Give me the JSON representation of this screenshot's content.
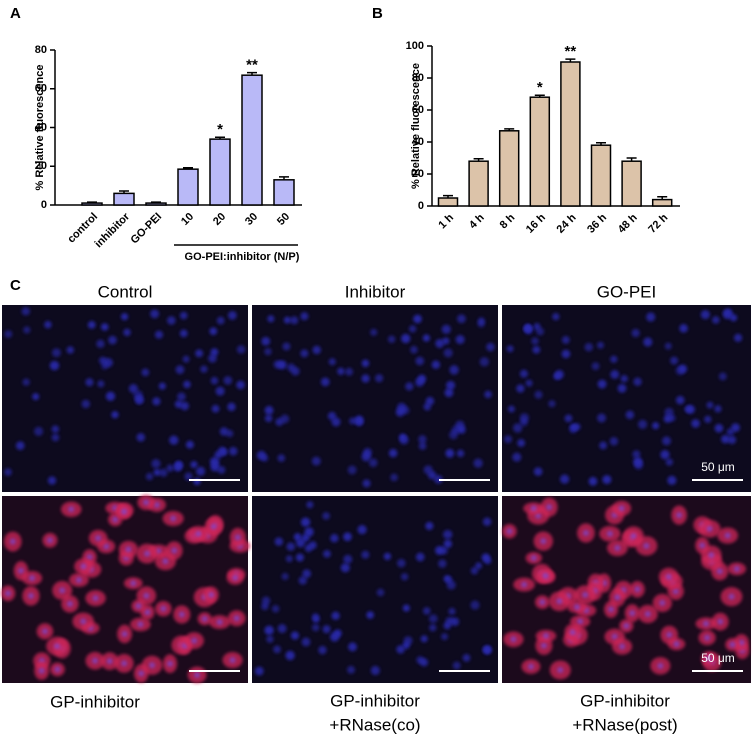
{
  "chart_data": [
    {
      "type": "bar",
      "panel_label": "A",
      "ylabel": "% Relative fluorescence",
      "categories": [
        "control",
        "inhibitor",
        "GO-PEI",
        "10",
        "20",
        "30",
        "50"
      ],
      "values": [
        1,
        6,
        1,
        18.5,
        34,
        67,
        13
      ],
      "errors": [
        0.5,
        1.2,
        0.5,
        0.7,
        1,
        1.3,
        1.5
      ],
      "color": "#b9b9f7",
      "ylim": [
        0,
        80
      ],
      "yticks": [
        0,
        20,
        40,
        60,
        80
      ],
      "group_label": "GO-PEI:inhibitor (N/P)",
      "annotations": [
        {
          "text": "*",
          "category": "20"
        },
        {
          "text": "**",
          "category": "30"
        }
      ]
    },
    {
      "type": "bar",
      "panel_label": "B",
      "ylabel": "% Relative fluorescence",
      "categories": [
        "1 h",
        "4 h",
        "8 h",
        "16 h",
        "24 h",
        "36 h",
        "48 h",
        "72 h"
      ],
      "values": [
        5,
        28,
        47,
        68,
        90,
        38,
        28,
        4
      ],
      "errors": [
        1.5,
        1.5,
        1.2,
        1.2,
        1.8,
        1.5,
        2,
        1.8
      ],
      "color": "#dcc3a9",
      "ylim": [
        0,
        100
      ],
      "yticks": [
        0,
        20,
        40,
        60,
        80,
        100
      ],
      "annotations": [
        {
          "text": "*",
          "category": "16 h"
        },
        {
          "text": "**",
          "category": "24 h"
        }
      ]
    }
  ],
  "panel_c": {
    "panel_label": "C",
    "column_titles": [
      "Control",
      "Inhibitor",
      "GO-PEI"
    ],
    "row_labels": [
      [
        "GP-inhibitor"
      ],
      [
        "GP-inhibitor",
        "+RNase(co)"
      ],
      [
        "GP-inhibitor",
        "+RNase(post)"
      ]
    ],
    "scale_bar_label": "50 μm"
  }
}
